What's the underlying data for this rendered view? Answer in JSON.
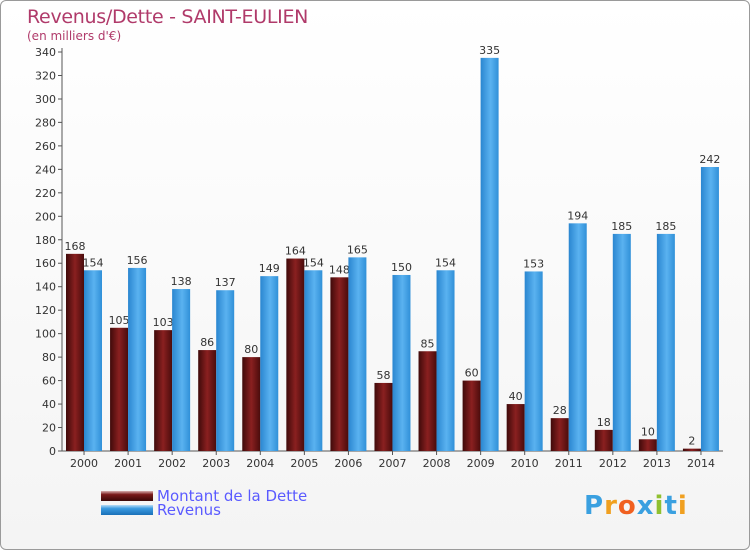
{
  "header": {
    "title": "Revenus/Dette - SAINT-EULIEN",
    "subtitle": "(en milliers d'€)"
  },
  "legend": {
    "items": [
      {
        "label": "Montant de la Dette",
        "color": "#7a1a1a"
      },
      {
        "label": "Revenus",
        "color": "#3a9ae0"
      }
    ]
  },
  "logo": {
    "text": "Proxiti",
    "letters": [
      "P",
      "r",
      "o",
      "x",
      "i",
      "t",
      "i"
    ],
    "colors": [
      "#3aa0e0",
      "#f0a020",
      "#f06020",
      "#3aa0e0",
      "#90c030",
      "#3aa0e0",
      "#f0a020"
    ]
  },
  "chart_data": {
    "type": "bar",
    "categories": [
      "2000",
      "2001",
      "2002",
      "2003",
      "2004",
      "2005",
      "2006",
      "2007",
      "2008",
      "2009",
      "2010",
      "2011",
      "2012",
      "2013",
      "2014"
    ],
    "series": [
      {
        "name": "Montant de la Dette",
        "color": "#7a1a1a",
        "values": [
          168,
          105,
          103,
          86,
          80,
          164,
          148,
          58,
          85,
          60,
          40,
          28,
          18,
          10,
          2
        ]
      },
      {
        "name": "Revenus",
        "color": "#3a9ae0",
        "values": [
          154,
          156,
          138,
          137,
          149,
          154,
          165,
          150,
          154,
          335,
          153,
          194,
          185,
          185,
          242
        ]
      }
    ],
    "yticks": [
      0,
      20,
      40,
      60,
      80,
      100,
      120,
      140,
      160,
      180,
      200,
      220,
      240,
      260,
      280,
      300,
      320,
      340
    ],
    "ylim": [
      0,
      340
    ],
    "grid": false
  }
}
